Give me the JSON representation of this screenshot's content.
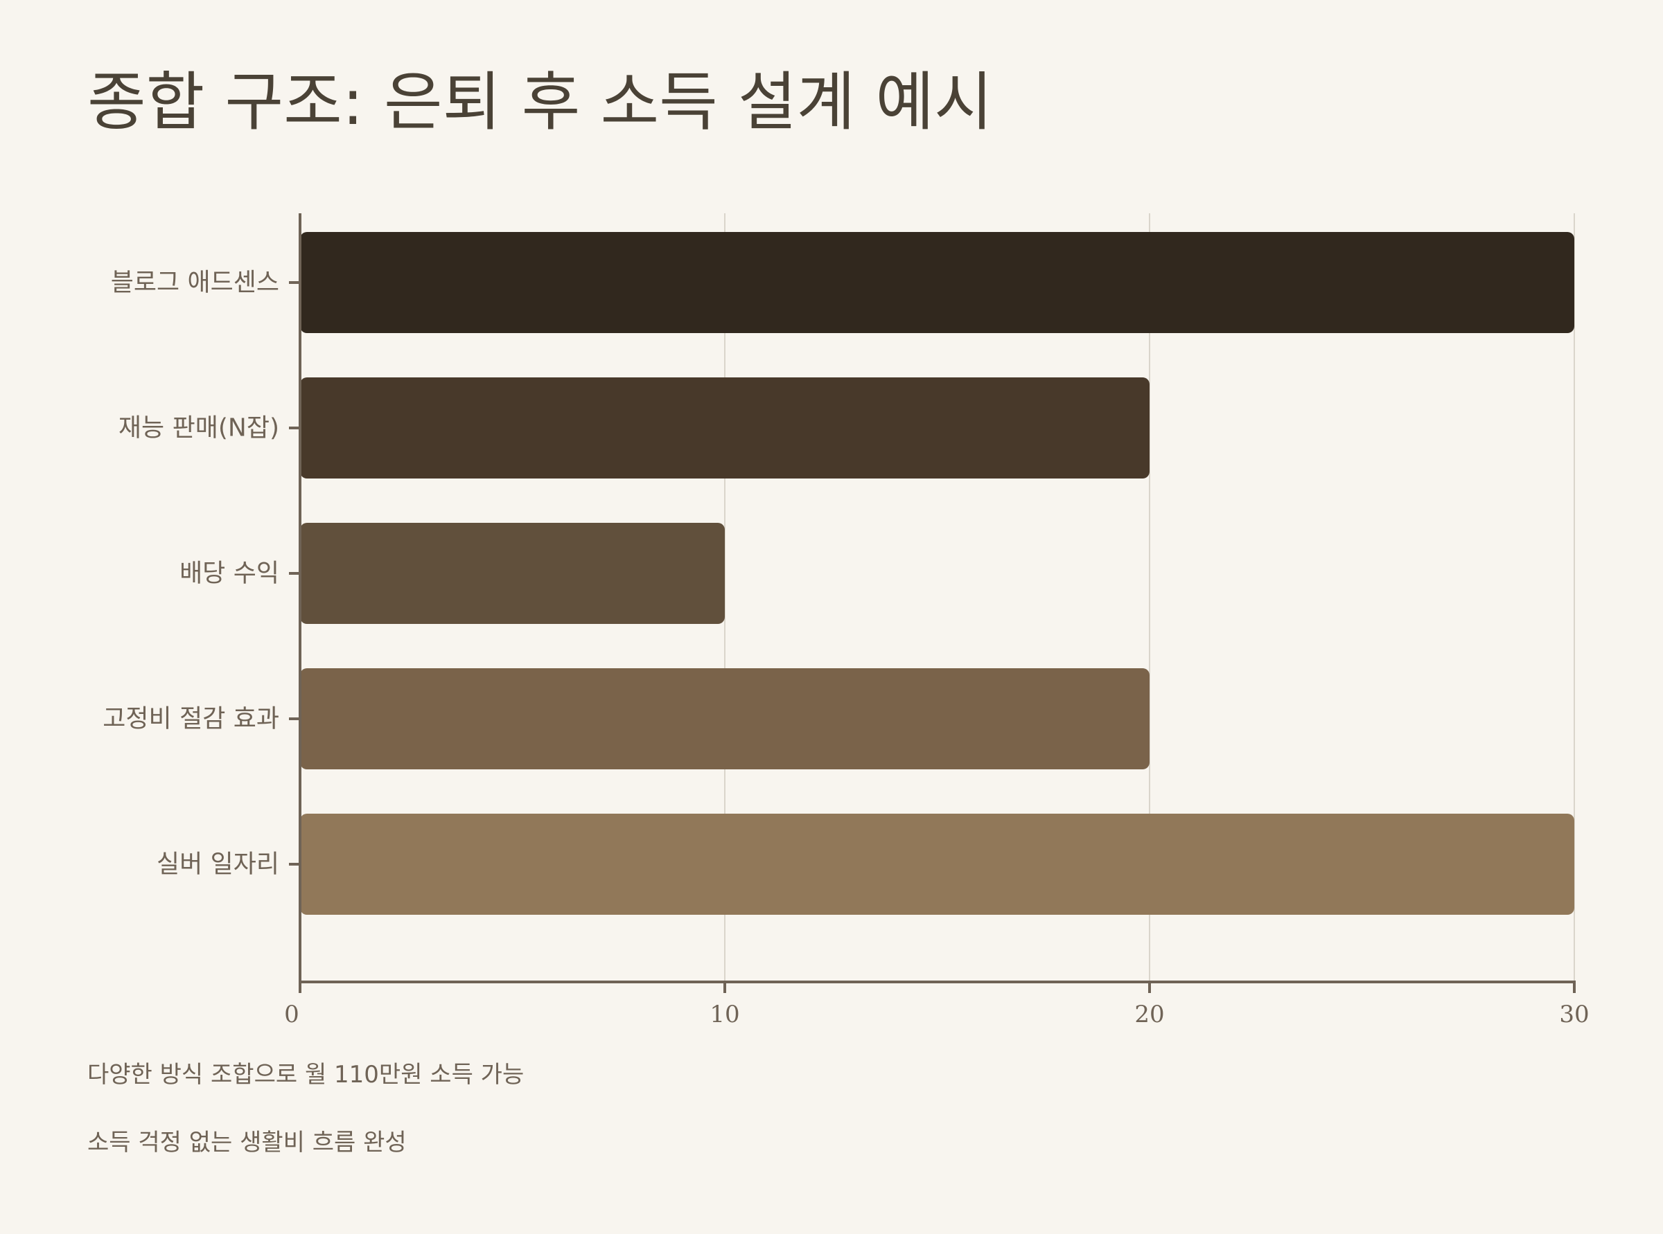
{
  "title": "종합 구조: 은퇴 후 소득 설계 예시",
  "notes": [
    "다양한 방식 조합으로 월 110만원 소득 가능",
    "소득 걱정 없는 생활비 흐름 완성"
  ],
  "chart_data": {
    "type": "bar",
    "orientation": "horizontal",
    "title": "종합 구조: 은퇴 후 소득 설계 예시",
    "xlabel": "",
    "ylabel": "",
    "categories": [
      "블로그 애드센스",
      "재능 판매(N잡)",
      "배당 수익",
      "고정비 절감 효과",
      "실버 일자리"
    ],
    "values": [
      30,
      20,
      10,
      20,
      30
    ],
    "bar_colors": [
      "#31281E",
      "#48392A",
      "#61503C",
      "#7A634A",
      "#917859"
    ],
    "xlim": [
      0,
      30
    ],
    "xticks": [
      0,
      10,
      20,
      30
    ],
    "grid": true,
    "legend": "none"
  }
}
